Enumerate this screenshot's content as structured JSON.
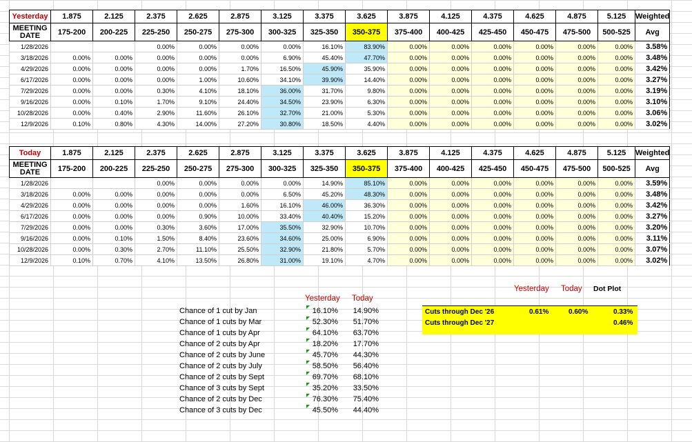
{
  "brackets": [
    "175-200",
    "200-225",
    "225-250",
    "250-275",
    "275-300",
    "300-325",
    "325-350",
    "350-375",
    "375-400",
    "400-425",
    "425-450",
    "450-475",
    "475-500",
    "500-525"
  ],
  "midpoints": [
    "1.875",
    "2.125",
    "2.375",
    "2.625",
    "2.875",
    "3.125",
    "3.375",
    "3.625",
    "3.875",
    "4.125",
    "4.375",
    "4.625",
    "4.875",
    "5.125"
  ],
  "headers": {
    "meeting": "MEETING",
    "date": "DATE",
    "weighted": "Weighted",
    "avg": "Avg"
  },
  "yesterday": {
    "label": "Yesterday",
    "rows": [
      {
        "date": "1/28/2026",
        "vals": [
          "",
          "",
          "0.00%",
          "0.00%",
          "0.00%",
          "0.00%",
          "16.10%",
          "83.90%",
          "0.00%",
          "0.00%",
          "0.00%",
          "0.00%",
          "0.00%",
          "0.00%"
        ],
        "avg": "3.58%"
      },
      {
        "date": "3/18/2026",
        "vals": [
          "0.00%",
          "0.00%",
          "0.00%",
          "0.00%",
          "0.00%",
          "6.90%",
          "45.40%",
          "47.70%",
          "0.00%",
          "0.00%",
          "0.00%",
          "0.00%",
          "0.00%",
          "0.00%"
        ],
        "avg": "3.48%"
      },
      {
        "date": "4/29/2026",
        "vals": [
          "0.00%",
          "0.00%",
          "0.00%",
          "0.00%",
          "1.70%",
          "16.50%",
          "45.90%",
          "35.90%",
          "0.00%",
          "0.00%",
          "0.00%",
          "0.00%",
          "0.00%",
          "0.00%"
        ],
        "avg": "3.42%"
      },
      {
        "date": "6/17/2026",
        "vals": [
          "0.00%",
          "0.00%",
          "0.00%",
          "1.00%",
          "10.60%",
          "34.10%",
          "39.90%",
          "14.40%",
          "0.00%",
          "0.00%",
          "0.00%",
          "0.00%",
          "0.00%",
          "0.00%"
        ],
        "avg": "3.27%"
      },
      {
        "date": "7/29/2026",
        "vals": [
          "0.00%",
          "0.00%",
          "0.30%",
          "4.10%",
          "18.10%",
          "36.00%",
          "31.70%",
          "9.80%",
          "0.00%",
          "0.00%",
          "0.00%",
          "0.00%",
          "0.00%",
          "0.00%"
        ],
        "avg": "3.19%"
      },
      {
        "date": "9/16/2026",
        "vals": [
          "0.00%",
          "0.10%",
          "1.70%",
          "9.10%",
          "24.40%",
          "34.50%",
          "23.90%",
          "6.30%",
          "0.00%",
          "0.00%",
          "0.00%",
          "0.00%",
          "0.00%",
          "0.00%"
        ],
        "avg": "3.10%"
      },
      {
        "date": "10/28/2026",
        "vals": [
          "0.00%",
          "0.40%",
          "2.90%",
          "11.60%",
          "26.10%",
          "32.70%",
          "21.00%",
          "5.30%",
          "0.00%",
          "0.00%",
          "0.00%",
          "0.00%",
          "0.00%",
          "0.00%"
        ],
        "avg": "3.06%"
      },
      {
        "date": "12/9/2026",
        "vals": [
          "0.10%",
          "0.80%",
          "4.30%",
          "14.00%",
          "27.20%",
          "30.80%",
          "18.50%",
          "4.40%",
          "0.00%",
          "0.00%",
          "0.00%",
          "0.00%",
          "0.00%",
          "0.00%"
        ],
        "avg": "3.02%"
      }
    ]
  },
  "today": {
    "label": "Today",
    "rows": [
      {
        "date": "1/28/2026",
        "vals": [
          "",
          "",
          "0.00%",
          "0.00%",
          "0.00%",
          "0.00%",
          "14.90%",
          "85.10%",
          "0.00%",
          "0.00%",
          "0.00%",
          "0.00%",
          "0.00%",
          "0.00%"
        ],
        "avg": "3.59%"
      },
      {
        "date": "3/18/2026",
        "vals": [
          "0.00%",
          "0.00%",
          "0.00%",
          "0.00%",
          "0.00%",
          "6.50%",
          "45.20%",
          "48.30%",
          "0.00%",
          "0.00%",
          "0.00%",
          "0.00%",
          "0.00%",
          "0.00%"
        ],
        "avg": "3.48%"
      },
      {
        "date": "4/29/2026",
        "vals": [
          "0.00%",
          "0.00%",
          "0.00%",
          "0.00%",
          "1.60%",
          "16.10%",
          "46.00%",
          "36.30%",
          "0.00%",
          "0.00%",
          "0.00%",
          "0.00%",
          "0.00%",
          "0.00%"
        ],
        "avg": "3.42%"
      },
      {
        "date": "6/17/2026",
        "vals": [
          "0.00%",
          "0.00%",
          "0.00%",
          "0.90%",
          "10.00%",
          "33.40%",
          "40.40%",
          "15.20%",
          "0.00%",
          "0.00%",
          "0.00%",
          "0.00%",
          "0.00%",
          "0.00%"
        ],
        "avg": "3.27%"
      },
      {
        "date": "7/29/2026",
        "vals": [
          "0.00%",
          "0.00%",
          "0.30%",
          "3.60%",
          "17.00%",
          "35.50%",
          "32.90%",
          "10.70%",
          "0.00%",
          "0.00%",
          "0.00%",
          "0.00%",
          "0.00%",
          "0.00%"
        ],
        "avg": "3.20%"
      },
      {
        "date": "9/16/2026",
        "vals": [
          "0.00%",
          "0.10%",
          "1.50%",
          "8.40%",
          "23.60%",
          "34.60%",
          "25.00%",
          "6.90%",
          "0.00%",
          "0.00%",
          "0.00%",
          "0.00%",
          "0.00%",
          "0.00%"
        ],
        "avg": "3.11%"
      },
      {
        "date": "10/28/2026",
        "vals": [
          "0.00%",
          "0.30%",
          "2.70%",
          "11.10%",
          "25.50%",
          "32.90%",
          "21.80%",
          "5.70%",
          "0.00%",
          "0.00%",
          "0.00%",
          "0.00%",
          "0.00%",
          "0.00%"
        ],
        "avg": "3.07%"
      },
      {
        "date": "12/9/2026",
        "vals": [
          "0.10%",
          "0.70%",
          "4.10%",
          "13.50%",
          "26.80%",
          "31.00%",
          "19.10%",
          "4.70%",
          "0.00%",
          "0.00%",
          "0.00%",
          "0.00%",
          "0.00%",
          "0.00%"
        ],
        "avg": "3.02%"
      }
    ]
  },
  "chances": {
    "yesterday_label": "Yesterday",
    "today_label": "Today",
    "rows": [
      {
        "label": "Chance of 1 cut by Jan",
        "yesterday": "16.10%",
        "today": "14.90%"
      },
      {
        "label": "Chance of 1 cuts by Mar",
        "yesterday": "52.30%",
        "today": "51.70%"
      },
      {
        "label": "Chance of 1 cuts by Apr",
        "yesterday": "64.10%",
        "today": "63.70%"
      },
      {
        "label": "Chance of 2 cuts by Apr",
        "yesterday": "18.20%",
        "today": "17.70%"
      },
      {
        "label": "Chance of 2 cuts by June",
        "yesterday": "45.70%",
        "today": "44.30%"
      },
      {
        "label": "Chance of 2 cuts by July",
        "yesterday": "58.50%",
        "today": "56.40%"
      },
      {
        "label": "Chance of 2 cuts by Sept",
        "yesterday": "69.70%",
        "today": "68.10%"
      },
      {
        "label": "Chance of 3 cuts by Sept",
        "yesterday": "35.20%",
        "today": "33.50%"
      },
      {
        "label": "Chance of 2 cuts by Dec",
        "yesterday": "76.30%",
        "today": "75.40%"
      },
      {
        "label": "Chance of 3 cuts by Dec",
        "yesterday": "45.50%",
        "today": "44.40%"
      }
    ]
  },
  "cuts": {
    "yesterday_label": "Yesterday",
    "today_label": "Today",
    "dotplot_label": "Dot Plot",
    "rows": [
      {
        "label": "Cuts through Dec '26",
        "yesterday": "0.61%",
        "today": "0.60%",
        "dotplot": "0.33%"
      },
      {
        "label": "Cuts through Dec '27",
        "yesterday": "",
        "today": "",
        "dotplot": "0.46%"
      }
    ]
  },
  "colors": {
    "highlight": "#ffff00",
    "blue": "#bfe8f8",
    "cream": "#ffffd9",
    "label_red": "#c00000",
    "flag_green": "#00a000"
  }
}
